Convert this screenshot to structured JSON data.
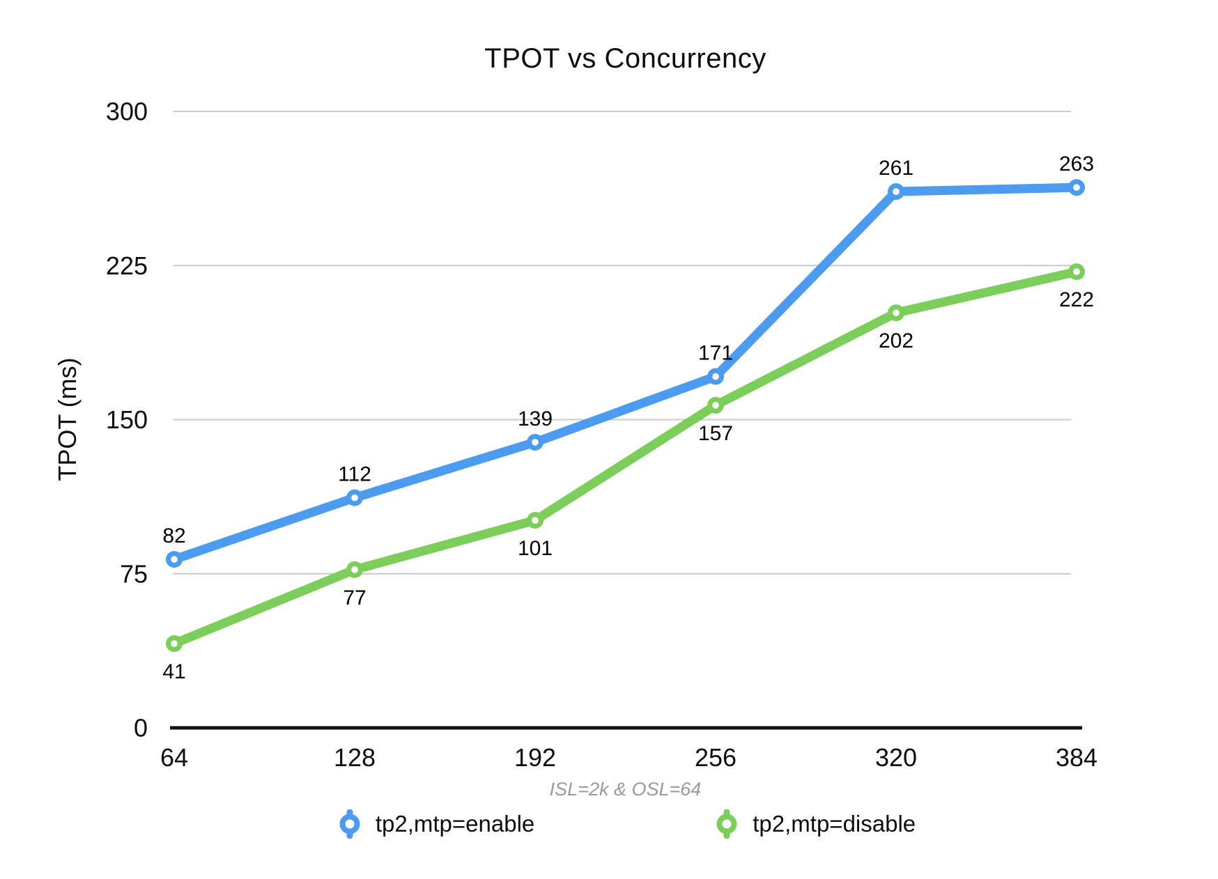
{
  "chart_data": {
    "type": "line",
    "title": "TPOT vs Concurrency",
    "subtitle": "ISL=2k & OSL=64",
    "xlabel": "",
    "ylabel": "TPOT (ms)",
    "x": [
      64,
      128,
      192,
      256,
      320,
      384
    ],
    "series": [
      {
        "name": "tp2,mtp=enable",
        "color": "#4D9BEE",
        "values": [
          82,
          112,
          139,
          171,
          261,
          263
        ],
        "label_position": "above"
      },
      {
        "name": "tp2,mtp=disable",
        "color": "#7CCE5B",
        "values": [
          41,
          77,
          101,
          157,
          202,
          222
        ],
        "label_position": "below"
      }
    ],
    "ylim": [
      0,
      300
    ],
    "yticks": [
      0,
      75,
      150,
      225,
      300
    ],
    "grid": true,
    "legend_position": "bottom"
  },
  "colors": {
    "gridline": "#c9c9c9",
    "axis_line": "#111111",
    "tick_text": "#0d0d0d",
    "data_label_text": "#000000",
    "subtitle_text": "#9a9a9a",
    "marker_center": "#ffffff",
    "background": "#ffffff"
  }
}
